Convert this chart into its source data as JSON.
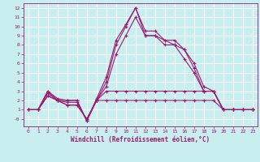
{
  "xlabel": "Windchill (Refroidissement éolien,°C)",
  "bg_color": "#c8eef0",
  "line_color": "#9b1b6e",
  "grid_color": "#ffffff",
  "xlim": [
    -0.5,
    23.5
  ],
  "ylim": [
    -0.8,
    12.5
  ],
  "xticks": [
    0,
    1,
    2,
    3,
    4,
    5,
    6,
    7,
    8,
    9,
    10,
    11,
    12,
    13,
    14,
    15,
    16,
    17,
    18,
    19,
    20,
    21,
    22,
    23
  ],
  "yticks": [
    0,
    1,
    2,
    3,
    4,
    5,
    6,
    7,
    8,
    9,
    10,
    11,
    12
  ],
  "ytick_labels": [
    "-0",
    "1",
    "2",
    "3",
    "4",
    "5",
    "6",
    "7",
    "8",
    "9",
    "10",
    "11",
    "12"
  ],
  "series": [
    [
      1,
      1,
      3,
      2,
      2,
      2,
      -0.2,
      2,
      4,
      8,
      10,
      12,
      9,
      9,
      8.5,
      8,
      7.5,
      5.5,
      3,
      3,
      1,
      1,
      1,
      1
    ],
    [
      1,
      1,
      3,
      2.2,
      2,
      2,
      -0.2,
      2.2,
      4.5,
      8.5,
      10.2,
      12,
      9.5,
      9.5,
      8.5,
      8.5,
      7.5,
      6,
      3.5,
      3,
      1,
      1,
      1,
      1
    ],
    [
      1,
      1,
      2.8,
      2.0,
      1.8,
      1.8,
      -0.2,
      2.0,
      3.5,
      7,
      9,
      11,
      9,
      9,
      8,
      8,
      6.5,
      5,
      3,
      3,
      1,
      1,
      1,
      1
    ],
    [
      1,
      1,
      2.5,
      2,
      1.5,
      1.5,
      0,
      2,
      3,
      3,
      3,
      3,
      3,
      3,
      3,
      3,
      3,
      3,
      3,
      3,
      1,
      1,
      1,
      1
    ],
    [
      1,
      1,
      2.5,
      2,
      1.5,
      1.5,
      0,
      2,
      2,
      2,
      2,
      2,
      2,
      2,
      2,
      2,
      2,
      2,
      2,
      2,
      1,
      1,
      1,
      1
    ]
  ]
}
